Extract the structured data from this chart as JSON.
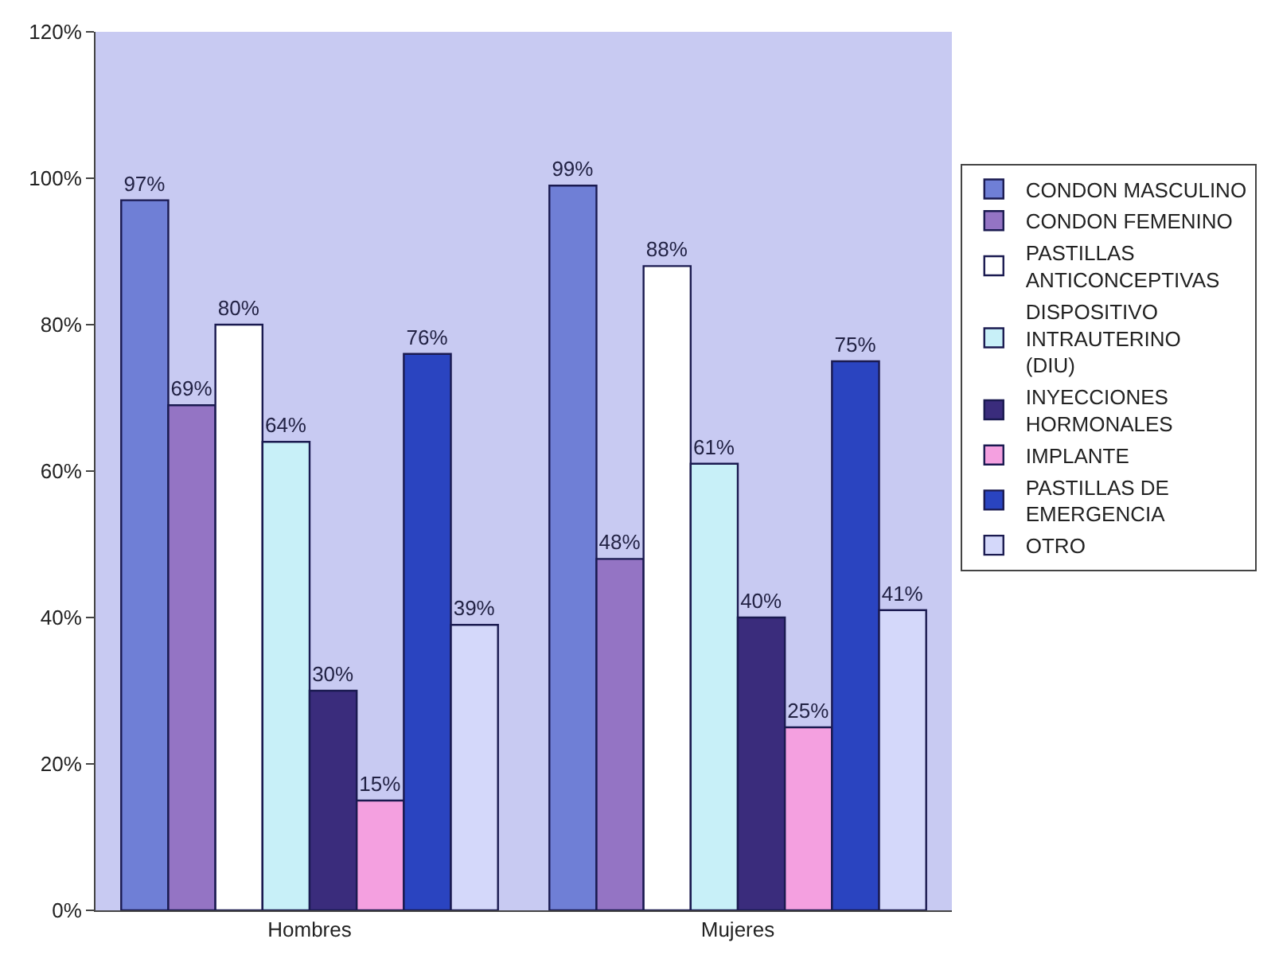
{
  "chart_data": {
    "type": "bar",
    "categories": [
      "Hombres",
      "Mujeres"
    ],
    "series": [
      {
        "name": "CONDON MASCULINO",
        "color": "#6f7fd6",
        "values": [
          97,
          99
        ],
        "value_labels": [
          "97%",
          "99%"
        ]
      },
      {
        "name": "CONDON FEMENINO",
        "color": "#9474c4",
        "values": [
          69,
          48
        ],
        "value_labels": [
          "69%",
          "48%"
        ]
      },
      {
        "name": "PASTILLAS ANTICONCEPTIVAS",
        "color": "#ffffff",
        "values": [
          80,
          88
        ],
        "value_labels": [
          "80%",
          "88%"
        ]
      },
      {
        "name": "DISPOSITIVO INTRAUTERINO (DIU)",
        "color": "#c8f0f8",
        "values": [
          64,
          61
        ],
        "value_labels": [
          "64%",
          "61%"
        ]
      },
      {
        "name": "INYECCIONES HORMONALES",
        "color": "#3a2c7c",
        "values": [
          30,
          40
        ],
        "value_labels": [
          "30%",
          "40%"
        ]
      },
      {
        "name": "IMPLANTE",
        "color": "#f4a0e0",
        "values": [
          15,
          25
        ],
        "value_labels": [
          "15%",
          "25%"
        ]
      },
      {
        "name": "PASTILLAS DE EMERGENCIA",
        "color": "#2a44c0",
        "values": [
          76,
          75
        ],
        "value_labels": [
          "76%",
          "75%"
        ]
      },
      {
        "name": "OTRO",
        "color": "#d4d8fa",
        "values": [
          39,
          41
        ],
        "value_labels": [
          "39%",
          "41%"
        ]
      }
    ],
    "ylim": [
      0,
      120
    ],
    "yticks": [
      {
        "value": 0,
        "label": "0%"
      },
      {
        "value": 20,
        "label": "20%"
      },
      {
        "value": 40,
        "label": "40%"
      },
      {
        "value": 60,
        "label": "60%"
      },
      {
        "value": 80,
        "label": "80%"
      },
      {
        "value": 100,
        "label": "100%"
      },
      {
        "value": 120,
        "label": "120%"
      }
    ],
    "legend": "right",
    "grid": false
  }
}
